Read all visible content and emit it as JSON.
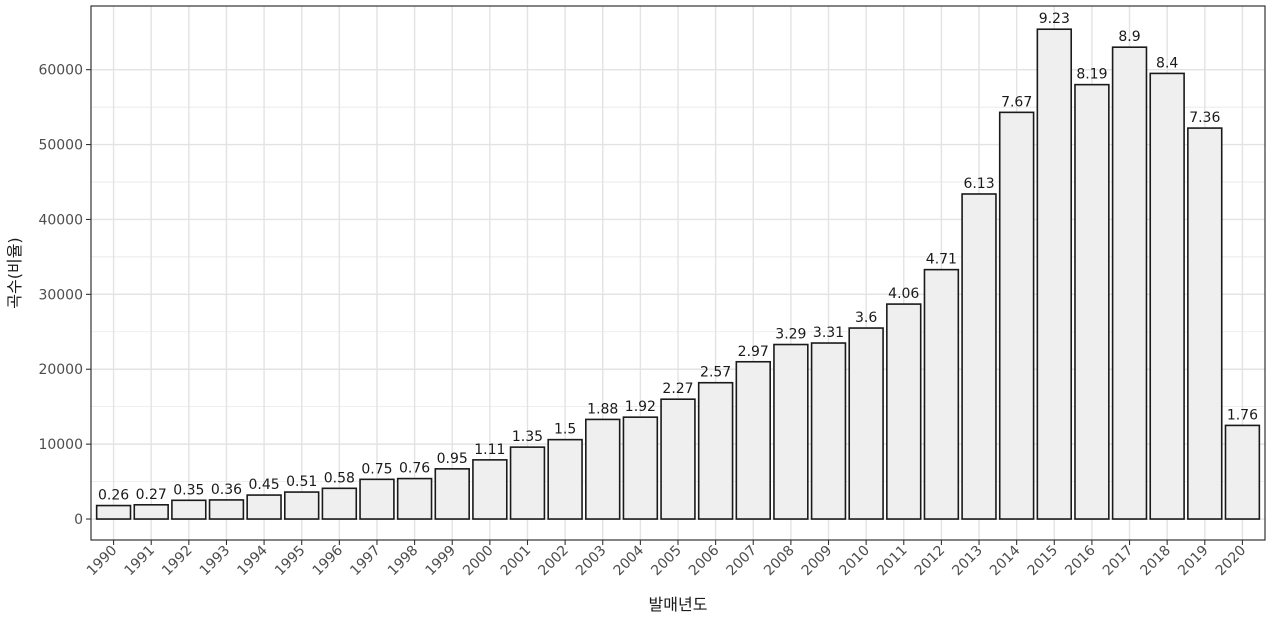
{
  "chart_data": {
    "type": "bar",
    "categories": [
      "1990",
      "1991",
      "1992",
      "1993",
      "1994",
      "1995",
      "1996",
      "1997",
      "1998",
      "1999",
      "2000",
      "2001",
      "2002",
      "2003",
      "2004",
      "2005",
      "2006",
      "2007",
      "2008",
      "2009",
      "2010",
      "2011",
      "2012",
      "2013",
      "2014",
      "2015",
      "2016",
      "2017",
      "2018",
      "2019",
      "2020"
    ],
    "values": [
      1800,
      1900,
      2500,
      2550,
      3200,
      3600,
      4100,
      5300,
      5400,
      6700,
      7900,
      9600,
      10600,
      13300,
      13600,
      16000,
      18200,
      21000,
      23300,
      23500,
      25500,
      28700,
      33300,
      43400,
      54300,
      65400,
      58000,
      63000,
      59500,
      52200,
      12500
    ],
    "data_labels": [
      "0.26",
      "0.27",
      "0.35",
      "0.36",
      "0.45",
      "0.51",
      "0.58",
      "0.75",
      "0.76",
      "0.95",
      "1.11",
      "1.35",
      "1.5",
      "1.88",
      "1.92",
      "2.27",
      "2.57",
      "2.97",
      "3.29",
      "3.31",
      "3.6",
      "4.06",
      "4.71",
      "6.13",
      "7.67",
      "9.23",
      "8.19",
      "8.9",
      "8.4",
      "7.36",
      "1.76"
    ],
    "title": "",
    "xlabel": "발매년도",
    "ylabel": "곡수(비율)",
    "ylim": [
      -2800,
      68500
    ],
    "yticks": [
      0,
      10000,
      20000,
      30000,
      40000,
      50000,
      60000
    ],
    "ytick_labels": [
      "0",
      "10000",
      "20000",
      "30000",
      "40000",
      "50000",
      "60000"
    ],
    "grid": true,
    "colors": {
      "bar_fill": "#efefef",
      "bar_stroke": "#1a1a1a",
      "grid": "#e3e3e3",
      "panel_border": "#333333"
    }
  }
}
